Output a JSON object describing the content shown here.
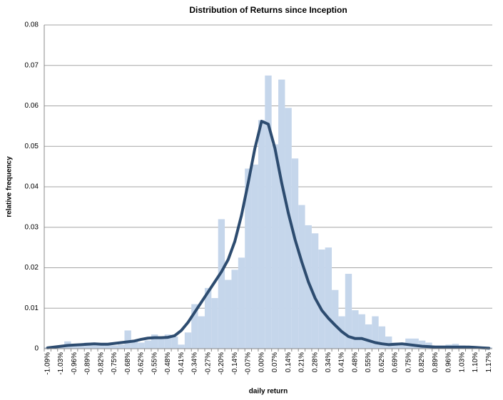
{
  "chart_data": {
    "type": "bar",
    "title": "Distribution of Returns since Inception",
    "x_label": "daily return",
    "y_label": "relative frequency",
    "categories": [
      "-1.09%",
      null,
      "-1.03%",
      null,
      "-0.96%",
      null,
      "-0.89%",
      null,
      "-0.82%",
      null,
      "-0.75%",
      null,
      "-0.68%",
      null,
      "-0.62%",
      null,
      "-0.55%",
      null,
      "-0.48%",
      null,
      "-0.41%",
      null,
      "-0.34%",
      null,
      "-0.27%",
      null,
      "-0.20%",
      null,
      "-0.14%",
      null,
      "-0.07%",
      null,
      "0.00%",
      null,
      "0.07%",
      null,
      "0.14%",
      null,
      "0.21%",
      null,
      "0.28%",
      null,
      "0.34%",
      null,
      "0.41%",
      null,
      "0.48%",
      null,
      "0.55%",
      null,
      "0.62%",
      null,
      "0.69%",
      null,
      "0.75%",
      null,
      "0.82%",
      null,
      "0.89%",
      null,
      "0.96%",
      null,
      "1.03%",
      null,
      "1.10%",
      null,
      "1.17%"
    ],
    "series": [
      {
        "type": "bar",
        "color": "#c5d6eb",
        "values": [
          0.0003,
          0.0005,
          0.0008,
          0.0018,
          0.0012,
          0.0008,
          0.0015,
          0.001,
          0.0012,
          0.001,
          0.0008,
          0.001,
          0.0045,
          0.002,
          0.0015,
          0.002,
          0.0035,
          0.003,
          0.0035,
          0.003,
          0.001,
          0.004,
          0.011,
          0.008,
          0.015,
          0.0125,
          0.032,
          0.017,
          0.0195,
          0.0225,
          0.0445,
          0.0455,
          0.0565,
          0.0675,
          0.0505,
          0.0665,
          0.0595,
          0.047,
          0.0355,
          0.0305,
          0.0285,
          0.0245,
          0.025,
          0.0145,
          0.008,
          0.0185,
          0.0095,
          0.0085,
          0.006,
          0.008,
          0.0055,
          0.003,
          0.0015,
          0.0015,
          0.0025,
          0.0025,
          0.002,
          0.0015,
          0.0008,
          0.0008,
          0.001,
          0.0012,
          0.0008,
          0.0005,
          0.0005,
          0.0005,
          0.0003
        ]
      },
      {
        "type": "line",
        "color": "#2d4c70",
        "values": [
          0.0002,
          0.0004,
          0.0006,
          0.0008,
          0.0009,
          0.001,
          0.0011,
          0.0012,
          0.0011,
          0.0011,
          0.0013,
          0.0015,
          0.0017,
          0.0019,
          0.0023,
          0.0026,
          0.0027,
          0.0027,
          0.0028,
          0.0032,
          0.0045,
          0.0065,
          0.009,
          0.0115,
          0.014,
          0.0165,
          0.019,
          0.022,
          0.0265,
          0.033,
          0.041,
          0.0495,
          0.0562,
          0.0555,
          0.0495,
          0.041,
          0.0335,
          0.027,
          0.0215,
          0.0165,
          0.0125,
          0.0095,
          0.0075,
          0.0058,
          0.0042,
          0.003,
          0.0025,
          0.0025,
          0.002,
          0.0015,
          0.0012,
          0.001,
          0.0011,
          0.0012,
          0.001,
          0.0008,
          0.0006,
          0.0005,
          0.0004,
          0.0004,
          0.0004,
          0.0004,
          0.0004,
          0.0004,
          0.0003,
          0.0002,
          0.0001
        ]
      }
    ],
    "ylim": [
      0,
      0.08
    ],
    "yticks": [
      0,
      0.01,
      0.02,
      0.03,
      0.04,
      0.05,
      0.06,
      0.07,
      0.08
    ],
    "grid": true
  }
}
